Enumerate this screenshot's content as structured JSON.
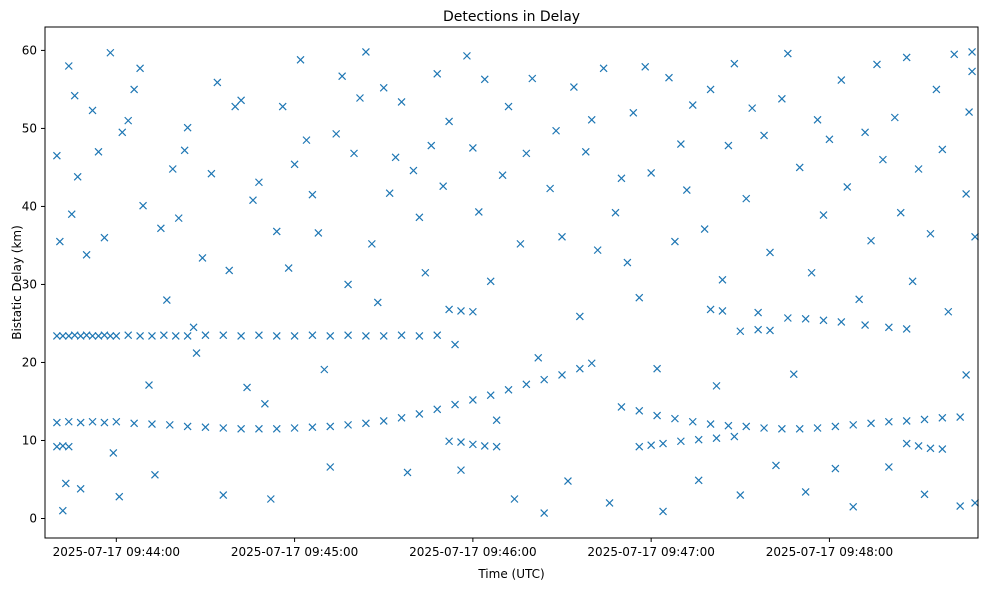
{
  "chart_data": {
    "type": "scatter",
    "title": "Detections in Delay",
    "xlabel": "Time (UTC)",
    "ylabel": "Bistatic Delay (km)",
    "x_unit": "time_utc",
    "xlim": [
      "2025-07-17 09:43:36",
      "2025-07-17 09:48:50"
    ],
    "ylim": [
      -2.5,
      63.0
    ],
    "grid": false,
    "marker": "x",
    "color": "#1f77b4",
    "x_ticks": [
      {
        "value": "2025-07-17 09:44:00",
        "label": "2025-07-17 09:44:00"
      },
      {
        "value": "2025-07-17 09:45:00",
        "label": "2025-07-17 09:45:00"
      },
      {
        "value": "2025-07-17 09:46:00",
        "label": "2025-07-17 09:46:00"
      },
      {
        "value": "2025-07-17 09:47:00",
        "label": "2025-07-17 09:47:00"
      },
      {
        "value": "2025-07-17 09:48:00",
        "label": "2025-07-17 09:48:00"
      }
    ],
    "y_ticks": [
      0,
      10,
      20,
      30,
      40,
      50,
      60
    ],
    "series": [
      {
        "values": [
          [
            "09:43:40",
            23.4
          ],
          [
            "09:43:42",
            23.4
          ],
          [
            "09:43:44",
            23.4
          ],
          [
            "09:43:46",
            23.5
          ],
          [
            "09:43:48",
            23.4
          ],
          [
            "09:43:50",
            23.5
          ],
          [
            "09:43:52",
            23.4
          ],
          [
            "09:43:54",
            23.4
          ],
          [
            "09:43:56",
            23.5
          ],
          [
            "09:43:58",
            23.4
          ],
          [
            "09:44:00",
            23.4
          ],
          [
            "09:44:04",
            23.5
          ],
          [
            "09:44:08",
            23.4
          ],
          [
            "09:44:12",
            23.4
          ],
          [
            "09:44:16",
            23.5
          ],
          [
            "09:44:20",
            23.4
          ],
          [
            "09:44:24",
            23.4
          ],
          [
            "09:44:26",
            24.5
          ],
          [
            "09:44:30",
            23.5
          ],
          [
            "09:44:36",
            23.5
          ],
          [
            "09:44:42",
            23.4
          ],
          [
            "09:44:48",
            23.5
          ],
          [
            "09:44:54",
            23.4
          ],
          [
            "09:45:00",
            23.4
          ],
          [
            "09:45:06",
            23.5
          ],
          [
            "09:45:12",
            23.4
          ],
          [
            "09:45:18",
            23.5
          ],
          [
            "09:45:24",
            23.4
          ],
          [
            "09:45:30",
            23.4
          ],
          [
            "09:45:36",
            23.5
          ],
          [
            "09:45:42",
            23.4
          ],
          [
            "09:45:48",
            23.5
          ],
          [
            "09:45:52",
            26.8
          ],
          [
            "09:45:56",
            26.6
          ],
          [
            "09:46:00",
            26.5
          ],
          [
            "09:47:20",
            26.8
          ],
          [
            "09:47:24",
            26.6
          ],
          [
            "09:47:30",
            24.0
          ],
          [
            "09:47:36",
            24.2
          ],
          [
            "09:47:40",
            24.1
          ],
          [
            "09:47:46",
            25.7
          ],
          [
            "09:47:52",
            25.6
          ],
          [
            "09:47:58",
            25.4
          ],
          [
            "09:48:04",
            25.2
          ],
          [
            "09:48:12",
            24.8
          ],
          [
            "09:48:20",
            24.5
          ],
          [
            "09:48:26",
            24.3
          ],
          [
            "09:43:40",
            12.3
          ],
          [
            "09:43:44",
            12.4
          ],
          [
            "09:43:48",
            12.3
          ],
          [
            "09:43:52",
            12.4
          ],
          [
            "09:43:56",
            12.3
          ],
          [
            "09:44:00",
            12.4
          ],
          [
            "09:44:06",
            12.2
          ],
          [
            "09:44:12",
            12.1
          ],
          [
            "09:44:18",
            12.0
          ],
          [
            "09:44:24",
            11.8
          ],
          [
            "09:44:30",
            11.7
          ],
          [
            "09:44:36",
            11.6
          ],
          [
            "09:44:42",
            11.5
          ],
          [
            "09:44:48",
            11.5
          ],
          [
            "09:44:54",
            11.5
          ],
          [
            "09:45:00",
            11.6
          ],
          [
            "09:45:06",
            11.7
          ],
          [
            "09:45:12",
            11.8
          ],
          [
            "09:45:18",
            12.0
          ],
          [
            "09:45:24",
            12.2
          ],
          [
            "09:45:30",
            12.5
          ],
          [
            "09:45:36",
            12.9
          ],
          [
            "09:45:42",
            13.4
          ],
          [
            "09:45:48",
            14.0
          ],
          [
            "09:45:54",
            14.6
          ],
          [
            "09:46:00",
            15.2
          ],
          [
            "09:46:06",
            15.8
          ],
          [
            "09:46:12",
            16.5
          ],
          [
            "09:46:18",
            17.2
          ],
          [
            "09:46:24",
            17.8
          ],
          [
            "09:46:30",
            18.4
          ],
          [
            "09:46:36",
            19.2
          ],
          [
            "09:46:40",
            19.9
          ],
          [
            "09:46:50",
            14.3
          ],
          [
            "09:46:56",
            13.8
          ],
          [
            "09:47:02",
            13.2
          ],
          [
            "09:47:08",
            12.8
          ],
          [
            "09:47:14",
            12.4
          ],
          [
            "09:47:20",
            12.1
          ],
          [
            "09:47:26",
            11.9
          ],
          [
            "09:47:32",
            11.8
          ],
          [
            "09:47:38",
            11.6
          ],
          [
            "09:47:44",
            11.5
          ],
          [
            "09:47:50",
            11.5
          ],
          [
            "09:47:56",
            11.6
          ],
          [
            "09:48:02",
            11.8
          ],
          [
            "09:48:08",
            12.0
          ],
          [
            "09:48:14",
            12.2
          ],
          [
            "09:48:20",
            12.4
          ],
          [
            "09:48:26",
            12.5
          ],
          [
            "09:48:32",
            12.7
          ],
          [
            "09:48:38",
            12.9
          ],
          [
            "09:48:44",
            13.0
          ],
          [
            "09:43:40",
            9.2
          ],
          [
            "09:43:42",
            9.3
          ],
          [
            "09:43:44",
            9.2
          ],
          [
            "09:45:52",
            9.9
          ],
          [
            "09:45:56",
            9.8
          ],
          [
            "09:46:00",
            9.5
          ],
          [
            "09:46:04",
            9.3
          ],
          [
            "09:46:08",
            9.2
          ],
          [
            "09:46:56",
            9.2
          ],
          [
            "09:47:00",
            9.4
          ],
          [
            "09:47:04",
            9.6
          ],
          [
            "09:47:10",
            9.9
          ],
          [
            "09:47:16",
            10.1
          ],
          [
            "09:47:22",
            10.3
          ],
          [
            "09:47:28",
            10.5
          ],
          [
            "09:48:26",
            9.6
          ],
          [
            "09:48:30",
            9.3
          ],
          [
            "09:48:34",
            9.0
          ],
          [
            "09:48:38",
            8.9
          ],
          [
            "09:43:40",
            46.5
          ],
          [
            "09:43:41",
            35.5
          ],
          [
            "09:43:42",
            1.0
          ],
          [
            "09:43:43",
            4.5
          ],
          [
            "09:43:44",
            58.0
          ],
          [
            "09:43:45",
            39.0
          ],
          [
            "09:43:46",
            54.2
          ],
          [
            "09:43:47",
            43.8
          ],
          [
            "09:43:48",
            3.8
          ],
          [
            "09:43:50",
            33.8
          ],
          [
            "09:43:52",
            52.3
          ],
          [
            "09:43:54",
            47.0
          ],
          [
            "09:43:56",
            36.0
          ],
          [
            "09:43:58",
            59.7
          ],
          [
            "09:43:59",
            8.4
          ],
          [
            "09:44:01",
            2.8
          ],
          [
            "09:44:02",
            49.5
          ],
          [
            "09:44:04",
            51.0
          ],
          [
            "09:44:06",
            55.0
          ],
          [
            "09:44:08",
            57.7
          ],
          [
            "09:44:09",
            40.1
          ],
          [
            "09:44:11",
            17.1
          ],
          [
            "09:44:13",
            5.6
          ],
          [
            "09:44:15",
            37.2
          ],
          [
            "09:44:17",
            28.0
          ],
          [
            "09:44:19",
            44.8
          ],
          [
            "09:44:21",
            38.5
          ],
          [
            "09:44:23",
            47.2
          ],
          [
            "09:44:24",
            50.1
          ],
          [
            "09:44:27",
            21.2
          ],
          [
            "09:44:29",
            33.4
          ],
          [
            "09:44:32",
            44.2
          ],
          [
            "09:44:34",
            55.9
          ],
          [
            "09:44:36",
            3.0
          ],
          [
            "09:44:38",
            31.8
          ],
          [
            "09:44:40",
            52.8
          ],
          [
            "09:44:42",
            53.6
          ],
          [
            "09:44:44",
            16.8
          ],
          [
            "09:44:46",
            40.8
          ],
          [
            "09:44:48",
            43.1
          ],
          [
            "09:44:50",
            14.7
          ],
          [
            "09:44:52",
            2.5
          ],
          [
            "09:44:54",
            36.8
          ],
          [
            "09:44:56",
            52.8
          ],
          [
            "09:44:58",
            32.1
          ],
          [
            "09:45:00",
            45.4
          ],
          [
            "09:45:02",
            58.8
          ],
          [
            "09:45:04",
            48.5
          ],
          [
            "09:45:06",
            41.5
          ],
          [
            "09:45:08",
            36.6
          ],
          [
            "09:45:10",
            19.1
          ],
          [
            "09:45:12",
            6.6
          ],
          [
            "09:45:14",
            49.3
          ],
          [
            "09:45:16",
            56.7
          ],
          [
            "09:45:18",
            30.0
          ],
          [
            "09:45:20",
            46.8
          ],
          [
            "09:45:22",
            53.9
          ],
          [
            "09:45:24",
            59.8
          ],
          [
            "09:45:26",
            35.2
          ],
          [
            "09:45:28",
            27.7
          ],
          [
            "09:45:30",
            55.2
          ],
          [
            "09:45:32",
            41.7
          ],
          [
            "09:45:34",
            46.3
          ],
          [
            "09:45:36",
            53.4
          ],
          [
            "09:45:38",
            5.9
          ],
          [
            "09:45:40",
            44.6
          ],
          [
            "09:45:42",
            38.6
          ],
          [
            "09:45:44",
            31.5
          ],
          [
            "09:45:46",
            47.8
          ],
          [
            "09:45:48",
            57.0
          ],
          [
            "09:45:50",
            42.6
          ],
          [
            "09:45:52",
            50.9
          ],
          [
            "09:45:54",
            22.3
          ],
          [
            "09:45:56",
            6.2
          ],
          [
            "09:45:58",
            59.3
          ],
          [
            "09:46:00",
            47.5
          ],
          [
            "09:46:02",
            39.3
          ],
          [
            "09:46:04",
            56.3
          ],
          [
            "09:46:06",
            30.4
          ],
          [
            "09:46:08",
            12.6
          ],
          [
            "09:46:10",
            44.0
          ],
          [
            "09:46:12",
            52.8
          ],
          [
            "09:46:14",
            2.5
          ],
          [
            "09:46:16",
            35.2
          ],
          [
            "09:46:18",
            46.8
          ],
          [
            "09:46:20",
            56.4
          ],
          [
            "09:46:22",
            20.6
          ],
          [
            "09:46:24",
            0.7
          ],
          [
            "09:46:26",
            42.3
          ],
          [
            "09:46:28",
            49.7
          ],
          [
            "09:46:30",
            36.1
          ],
          [
            "09:46:32",
            4.8
          ],
          [
            "09:46:34",
            55.3
          ],
          [
            "09:46:36",
            25.9
          ],
          [
            "09:46:38",
            47.0
          ],
          [
            "09:46:40",
            51.1
          ],
          [
            "09:46:42",
            34.4
          ],
          [
            "09:46:44",
            57.7
          ],
          [
            "09:46:46",
            2.0
          ],
          [
            "09:46:48",
            39.2
          ],
          [
            "09:46:50",
            43.6
          ],
          [
            "09:46:52",
            32.8
          ],
          [
            "09:46:54",
            52.0
          ],
          [
            "09:46:56",
            28.3
          ],
          [
            "09:46:58",
            57.9
          ],
          [
            "09:47:00",
            44.3
          ],
          [
            "09:47:02",
            19.2
          ],
          [
            "09:47:04",
            0.9
          ],
          [
            "09:47:06",
            56.5
          ],
          [
            "09:47:08",
            35.5
          ],
          [
            "09:47:10",
            48.0
          ],
          [
            "09:47:12",
            42.1
          ],
          [
            "09:47:14",
            53.0
          ],
          [
            "09:47:16",
            4.9
          ],
          [
            "09:47:18",
            37.1
          ],
          [
            "09:47:20",
            55.0
          ],
          [
            "09:47:22",
            17.0
          ],
          [
            "09:47:24",
            30.6
          ],
          [
            "09:47:26",
            47.8
          ],
          [
            "09:47:28",
            58.3
          ],
          [
            "09:47:30",
            3.0
          ],
          [
            "09:47:32",
            41.0
          ],
          [
            "09:47:34",
            52.6
          ],
          [
            "09:47:36",
            26.4
          ],
          [
            "09:47:38",
            49.1
          ],
          [
            "09:47:40",
            34.1
          ],
          [
            "09:47:42",
            6.8
          ],
          [
            "09:47:44",
            53.8
          ],
          [
            "09:47:46",
            59.6
          ],
          [
            "09:47:48",
            18.5
          ],
          [
            "09:47:50",
            45.0
          ],
          [
            "09:47:52",
            3.4
          ],
          [
            "09:47:54",
            31.5
          ],
          [
            "09:47:56",
            51.1
          ],
          [
            "09:47:58",
            38.9
          ],
          [
            "09:48:00",
            48.6
          ],
          [
            "09:48:02",
            6.4
          ],
          [
            "09:48:04",
            56.2
          ],
          [
            "09:48:06",
            42.5
          ],
          [
            "09:48:08",
            1.5
          ],
          [
            "09:48:10",
            28.1
          ],
          [
            "09:48:12",
            49.5
          ],
          [
            "09:48:14",
            35.6
          ],
          [
            "09:48:16",
            58.2
          ],
          [
            "09:48:18",
            46.0
          ],
          [
            "09:48:20",
            6.6
          ],
          [
            "09:48:22",
            51.4
          ],
          [
            "09:48:24",
            39.2
          ],
          [
            "09:48:26",
            59.1
          ],
          [
            "09:48:28",
            30.4
          ],
          [
            "09:48:30",
            44.8
          ],
          [
            "09:48:32",
            3.1
          ],
          [
            "09:48:34",
            36.5
          ],
          [
            "09:48:36",
            55.0
          ],
          [
            "09:48:38",
            47.3
          ],
          [
            "09:48:40",
            26.5
          ],
          [
            "09:48:42",
            59.5
          ],
          [
            "09:48:44",
            1.6
          ],
          [
            "09:48:46",
            41.6
          ],
          [
            "09:48:48",
            57.3
          ],
          [
            "09:48:49",
            36.1
          ],
          [
            "09:48:49",
            2.0
          ],
          [
            "09:48:48",
            59.8
          ],
          [
            "09:48:47",
            52.1
          ],
          [
            "09:48:46",
            18.4
          ]
        ]
      }
    ]
  }
}
